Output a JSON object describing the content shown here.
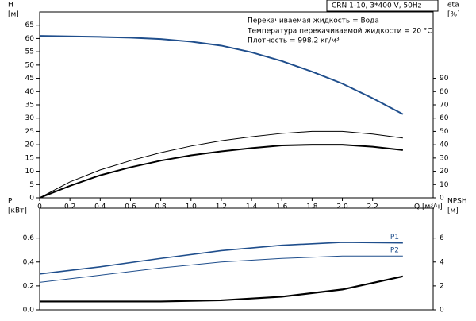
{
  "header": {
    "model": "CRN 1-10, 3*400 V, 50Hz"
  },
  "notes": [
    "Перекачиваемая жидкость = Вода",
    "Температура перекачиваемой жидкости = 20 °C",
    "Плотность = 998.2 кг/м³"
  ],
  "chart_data": [
    {
      "type": "line",
      "ylabel": "H",
      "yunit": "[м]",
      "y2label": "eta",
      "y2unit": "[%]",
      "xlabel": "Q [м³/ч]",
      "xlim": [
        0,
        2.6
      ],
      "xticks": [
        0,
        0.2,
        0.4,
        0.6,
        0.8,
        {
          "value": 1,
          "label": "1.0"
        },
        1.2,
        1.4,
        1.6,
        1.8,
        {
          "value": 2,
          "label": "2.0"
        },
        2.2
      ],
      "ylim": [
        0,
        70
      ],
      "yticks": [
        0,
        5,
        10,
        15,
        20,
        25,
        30,
        35,
        40,
        45,
        50,
        55,
        60,
        65
      ],
      "y2lim": [
        0,
        140
      ],
      "y2ticks": [
        0,
        10,
        20,
        30,
        40,
        50,
        60,
        70,
        80,
        90
      ],
      "x": [
        0,
        0.2,
        0.4,
        0.6,
        0.8,
        1.0,
        1.2,
        1.4,
        1.6,
        1.8,
        2.0,
        2.2,
        2.4
      ],
      "series": [
        {
          "color": "#1f4e8c",
          "width": 2,
          "values": [
            61,
            60.8,
            60.6,
            60.3,
            59.8,
            58.8,
            57.3,
            54.8,
            51.5,
            47.5,
            43,
            37.5,
            31.5
          ]
        },
        {
          "color": "#000000",
          "width": 1,
          "axis": "y2",
          "values": [
            0,
            12,
            21,
            28,
            34,
            39,
            43,
            46,
            48.5,
            50,
            50,
            48,
            45
          ]
        },
        {
          "color": "#000000",
          "width": 2,
          "axis": "y2",
          "values": [
            0,
            9,
            17,
            23,
            28,
            32,
            35,
            37.5,
            39.5,
            40,
            40,
            38.5,
            36
          ]
        }
      ]
    },
    {
      "type": "line",
      "ylabel": "P",
      "yunit": "[кВт]",
      "y2label": "NPSH",
      "y2unit": "[м]",
      "xlim": [
        0,
        2.6
      ],
      "ylim": [
        0,
        0.85
      ],
      "yticks": [
        {
          "value": 0,
          "label": "0.0"
        },
        0.2,
        0.4,
        0.6
      ],
      "y2lim": [
        0,
        8.5
      ],
      "y2ticks": [
        0,
        2,
        4,
        6
      ],
      "x": [
        0,
        0.4,
        0.8,
        1.2,
        1.6,
        2.0,
        2.4
      ],
      "series": [
        {
          "name": "P1",
          "color": "#1f4e8c",
          "width": 1.6,
          "values": [
            0.3,
            0.36,
            0.43,
            0.495,
            0.54,
            0.565,
            0.56
          ]
        },
        {
          "name": "P2",
          "color": "#1f4e8c",
          "width": 1,
          "values": [
            0.23,
            0.29,
            0.35,
            0.4,
            0.43,
            0.45,
            0.45
          ]
        },
        {
          "color": "#000000",
          "width": 2.2,
          "axis": "y2",
          "values": [
            0.7,
            0.7,
            0.7,
            0.8,
            1.1,
            1.7,
            2.8
          ]
        }
      ]
    }
  ]
}
